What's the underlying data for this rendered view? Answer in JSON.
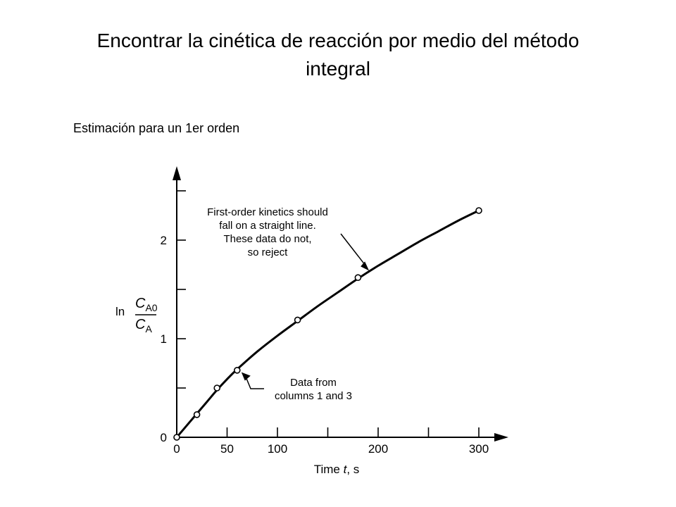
{
  "slide": {
    "title_line1": "Encontrar la cinética de reacción por medio del método",
    "title_line2": "integral",
    "subtitle": "Estimación para un 1er orden"
  },
  "chart_data": {
    "type": "scatter",
    "title": "",
    "xlabel": {
      "prefix": "Time ",
      "variable": "t",
      "suffix": ", s"
    },
    "ylabel": {
      "ln": "ln",
      "numerator": "C",
      "numerator_sub": "A0",
      "denominator": "C",
      "denominator_sub": "A"
    },
    "xlim": [
      0,
      320
    ],
    "ylim": [
      0,
      2.6
    ],
    "x_ticks": [
      0,
      50,
      100,
      200,
      300
    ],
    "x_tick_labels": [
      "0",
      "50",
      "100",
      "200",
      "300"
    ],
    "x_minor_ticks": [
      150,
      250
    ],
    "y_ticks": [
      0,
      1,
      2
    ],
    "y_tick_labels": [
      "0",
      "1",
      "2"
    ],
    "y_minor_ticks": [
      0.5,
      1.5,
      2.5
    ],
    "grid": false,
    "series": [
      {
        "kind": "points",
        "x": [
          0,
          20,
          40,
          60,
          120,
          180,
          300
        ],
        "y": [
          0,
          0.23,
          0.5,
          0.68,
          1.19,
          1.62,
          2.3
        ]
      },
      {
        "kind": "curve",
        "x": [
          0,
          10,
          20,
          30,
          40,
          50,
          60,
          80,
          100,
          120,
          140,
          160,
          180,
          200,
          220,
          240,
          260,
          280,
          300
        ],
        "y": [
          0,
          0.12,
          0.24,
          0.36,
          0.48,
          0.59,
          0.69,
          0.87,
          1.03,
          1.18,
          1.33,
          1.47,
          1.61,
          1.74,
          1.86,
          1.98,
          2.09,
          2.2,
          2.3
        ]
      }
    ],
    "annotations": [
      {
        "lines": [
          "First-order kinetics should",
          "fall on a straight line.",
          "These data do not,",
          "so reject"
        ],
        "points_to_x": 191
      },
      {
        "lines": [
          "Data from",
          "columns 1 and 3"
        ],
        "points_to_x": 60
      }
    ]
  }
}
